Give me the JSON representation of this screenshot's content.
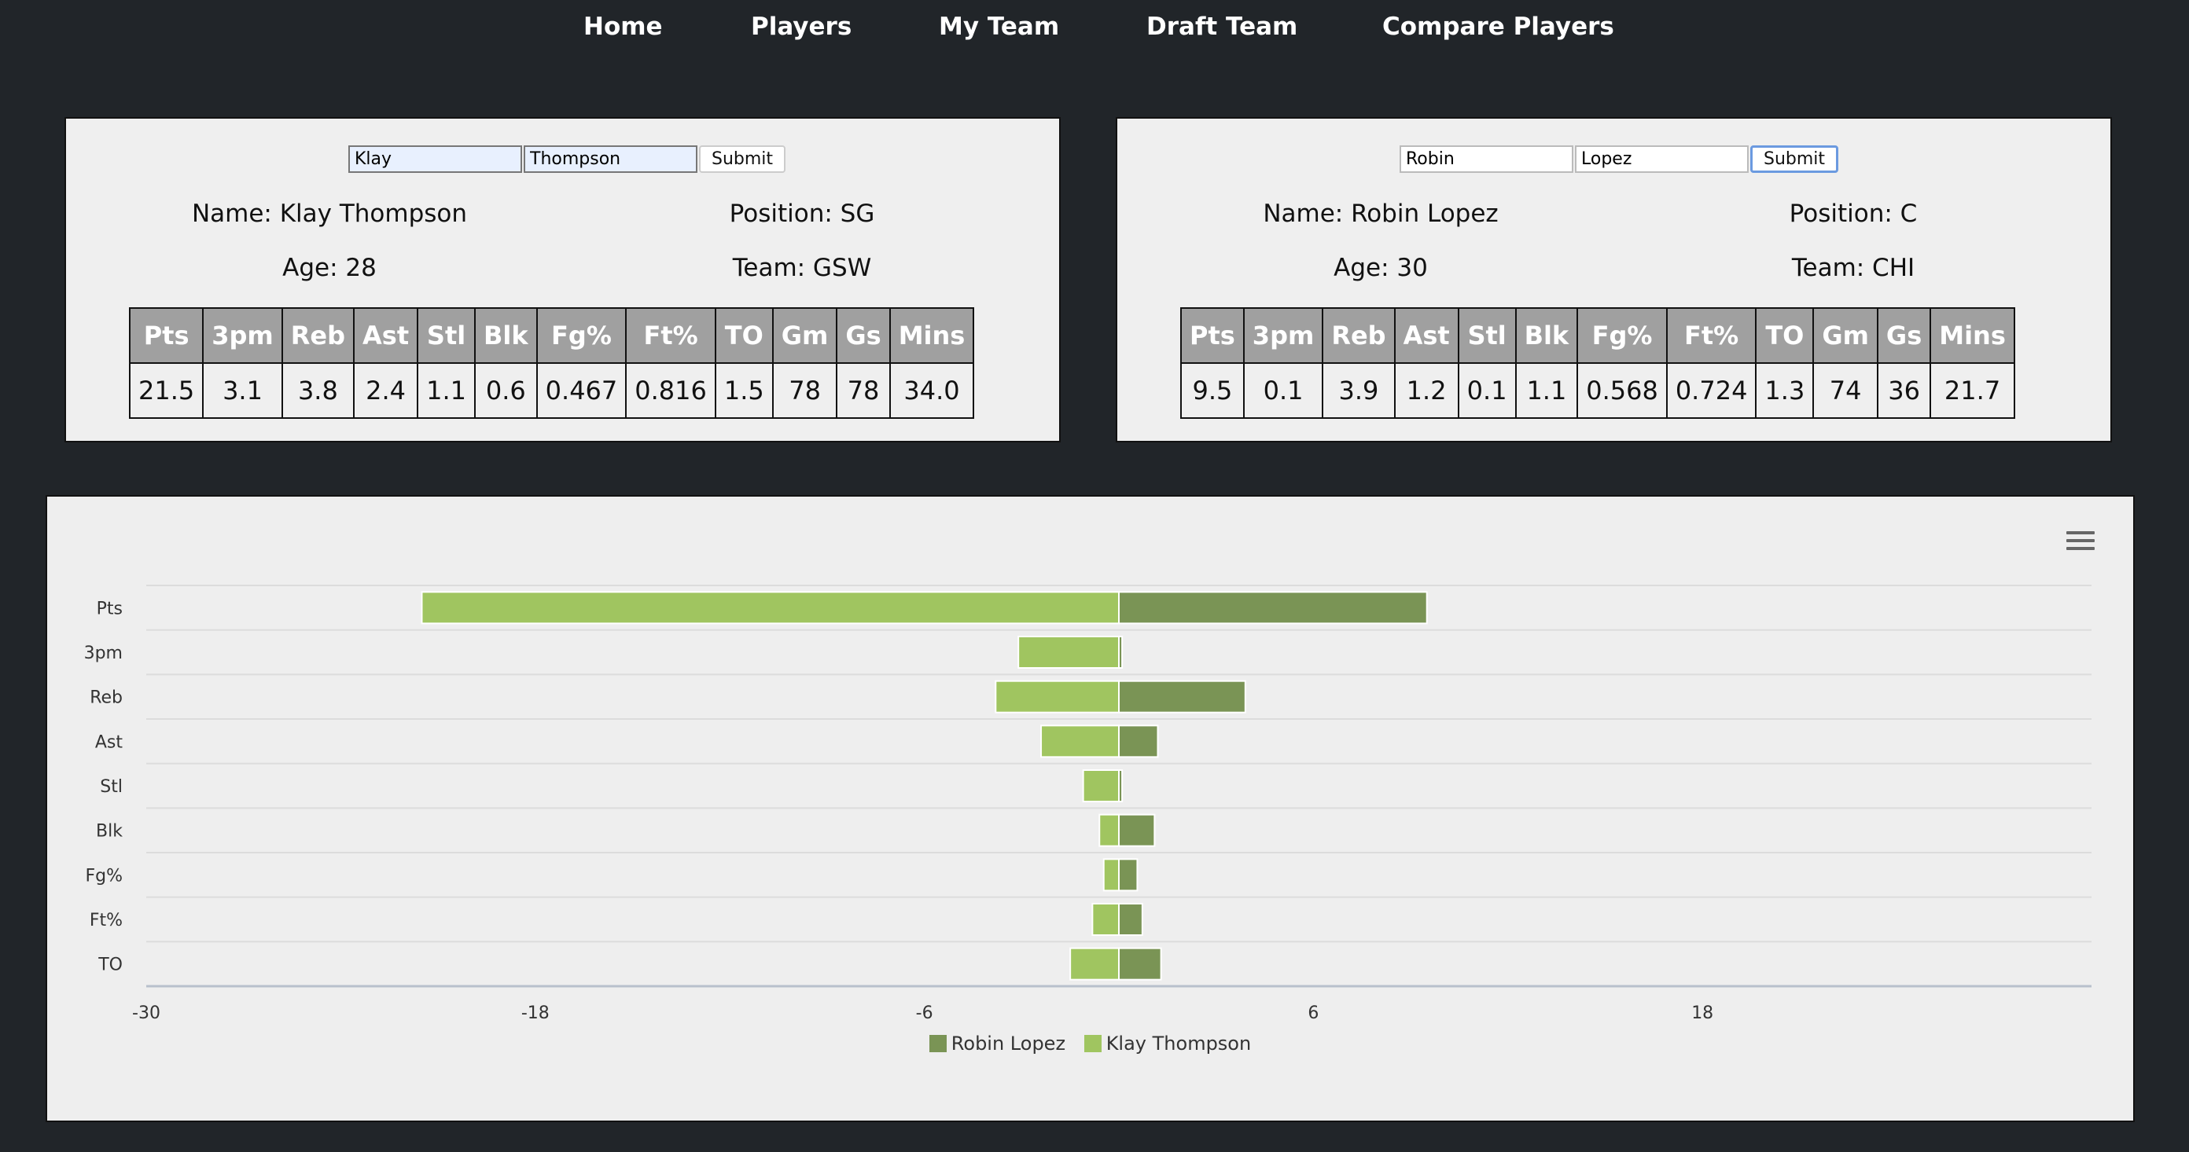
{
  "nav": {
    "items": [
      {
        "label": "Home"
      },
      {
        "label": "Players"
      },
      {
        "label": "My Team"
      },
      {
        "label": "Draft Team"
      },
      {
        "label": "Compare Players"
      }
    ]
  },
  "stat_headers": [
    "Pts",
    "3pm",
    "Reb",
    "Ast",
    "Stl",
    "Blk",
    "Fg%",
    "Ft%",
    "TO",
    "Gm",
    "Gs",
    "Mins"
  ],
  "players": [
    {
      "first_name": "Klay",
      "last_name": "Thompson",
      "submit_label": "Submit",
      "name_text": "Name: Klay Thompson",
      "position_text": "Position: SG",
      "age_text": "Age: 28",
      "team_text": "Team: GSW",
      "stats": [
        "21.5",
        "3.1",
        "3.8",
        "2.4",
        "1.1",
        "0.6",
        "0.467",
        "0.816",
        "1.5",
        "78",
        "78",
        "34.0"
      ]
    },
    {
      "first_name": "Robin",
      "last_name": "Lopez",
      "submit_label": "Submit",
      "name_text": "Name: Robin Lopez",
      "position_text": "Position: C",
      "age_text": "Age: 30",
      "team_text": "Team: CHI",
      "stats": [
        "9.5",
        "0.1",
        "3.9",
        "1.2",
        "0.1",
        "1.1",
        "0.568",
        "0.724",
        "1.3",
        "74",
        "36",
        "21.7"
      ]
    }
  ],
  "chart_data": {
    "type": "bar",
    "orientation": "horizontal",
    "stacking": "diverging",
    "categories": [
      "Pts",
      "3pm",
      "Reb",
      "Ast",
      "Stl",
      "Blk",
      "Fg%",
      "Ft%",
      "TO"
    ],
    "series": [
      {
        "name": "Robin Lopez",
        "color": "#7a9455",
        "values": [
          9.5,
          0.1,
          3.9,
          1.2,
          0.1,
          1.1,
          0.568,
          0.724,
          1.3
        ]
      },
      {
        "name": "Klay Thompson",
        "color": "#a0c560",
        "values": [
          -21.5,
          -3.1,
          -3.8,
          -2.4,
          -1.1,
          -0.6,
          -0.467,
          -0.816,
          -1.5
        ]
      }
    ],
    "xlim": [
      -30,
      30
    ],
    "xticks": [
      -30,
      -18,
      -6,
      6,
      18
    ],
    "title": "",
    "xlabel": "",
    "ylabel": "",
    "grid": true,
    "legend": "bottom-center"
  }
}
